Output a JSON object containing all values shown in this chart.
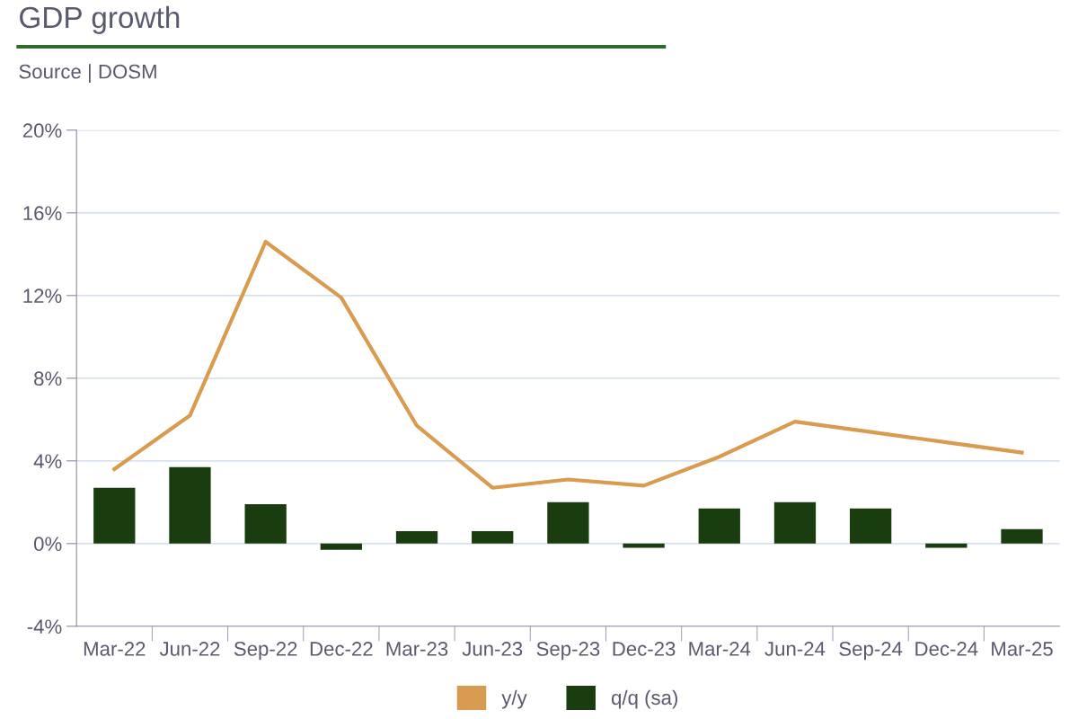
{
  "chart_data": {
    "type": "bar",
    "title": "GDP growth",
    "subtitle": "Source | DOSM",
    "categories": [
      "Mar-22",
      "Jun-22",
      "Sep-22",
      "Dec-22",
      "Mar-23",
      "Jun-23",
      "Sep-23",
      "Dec-23",
      "Mar-24",
      "Jun-24",
      "Sep-24",
      "Dec-24",
      "Mar-25"
    ],
    "series": [
      {
        "name": "y/y",
        "type": "line",
        "color": "#d99b4f",
        "values": [
          3.6,
          6.2,
          14.6,
          11.9,
          5.7,
          2.7,
          3.1,
          2.8,
          4.2,
          5.9,
          5.4,
          4.9,
          4.4
        ]
      },
      {
        "name": "q/q (sa)",
        "color": "#1a3d0f",
        "values": [
          2.7,
          3.7,
          1.9,
          -0.3,
          0.6,
          0.6,
          2.0,
          -0.2,
          1.7,
          2.0,
          1.7,
          -0.2,
          0.7
        ]
      }
    ],
    "ylim": [
      -4,
      20
    ],
    "yticks": [
      {
        "value": -4,
        "label": "-4%"
      },
      {
        "value": 0,
        "label": "0%"
      },
      {
        "value": 4,
        "label": "4%"
      },
      {
        "value": 8,
        "label": "8%"
      },
      {
        "value": 12,
        "label": "12%"
      },
      {
        "value": 16,
        "label": "16%"
      },
      {
        "value": 20,
        "label": "20%"
      }
    ],
    "grid": "y",
    "legend": "bottom",
    "line_style": "solid",
    "marker": "none"
  }
}
